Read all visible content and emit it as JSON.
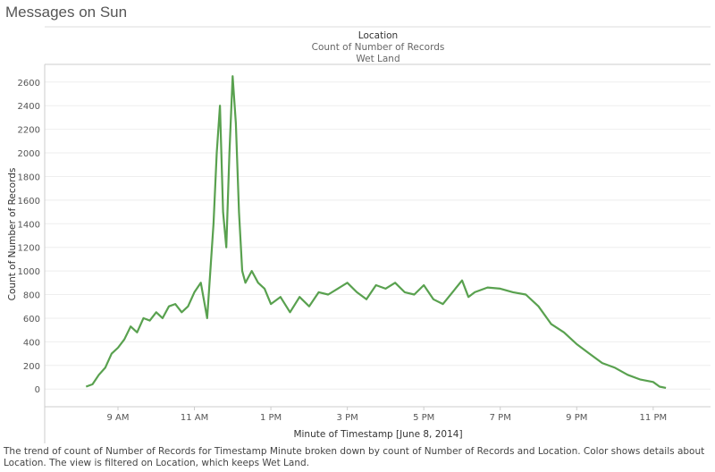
{
  "page": {
    "title": "Messages on Sun",
    "caption": "The trend of count of Number of Records for Timestamp Minute broken down by count of Number of Records and Location.  Color shows details about Location. The view is filtered on Location, which keeps Wet Land."
  },
  "colors": {
    "line": "#59a14f",
    "grid": "#eeeeee",
    "axis": "#cccccc"
  },
  "chart_data": {
    "type": "line",
    "header": {
      "title": "Location",
      "subtitle": "Count of Number of Records",
      "pane_label": "Wet Land"
    },
    "xlabel": "Minute of Timestamp [June 8, 2014]",
    "ylabel": "Count of Number of Records",
    "ylim": [
      -150,
      2750
    ],
    "yticks": [
      0,
      200,
      400,
      600,
      800,
      1000,
      1200,
      1400,
      1600,
      1800,
      2000,
      2200,
      2400,
      2600
    ],
    "ytick_labels": [
      "0",
      "200",
      "400",
      "600",
      "800",
      "1000",
      "1200",
      "1400",
      "1600",
      "1800",
      "2000",
      "2200",
      "2400",
      "2600"
    ],
    "xlim": [
      "07:05",
      "00:30"
    ],
    "xticks": [
      "09:00",
      "11:00",
      "13:00",
      "15:00",
      "17:00",
      "19:00",
      "21:00",
      "23:00"
    ],
    "xtick_labels": [
      "9 AM",
      "11 AM",
      "1 PM",
      "3 PM",
      "5 PM",
      "7 PM",
      "9 PM",
      "11 PM"
    ],
    "grid": true,
    "series": [
      {
        "x": [
          "08:10",
          "08:20",
          "08:30",
          "08:40",
          "08:50",
          "09:00",
          "09:10",
          "09:20",
          "09:30",
          "09:40",
          "09:50",
          "10:00",
          "10:10",
          "10:20",
          "10:30",
          "10:40",
          "10:50",
          "11:00",
          "11:10",
          "11:20",
          "11:30",
          "11:35",
          "11:40",
          "11:45",
          "11:50",
          "11:55",
          "12:00",
          "12:05",
          "12:10",
          "12:15",
          "12:20",
          "12:30",
          "12:40",
          "12:50",
          "13:00",
          "13:15",
          "13:30",
          "13:45",
          "14:00",
          "14:15",
          "14:30",
          "14:45",
          "15:00",
          "15:15",
          "15:30",
          "15:45",
          "16:00",
          "16:15",
          "16:30",
          "16:45",
          "17:00",
          "17:15",
          "17:30",
          "17:45",
          "18:00",
          "18:10",
          "18:20",
          "18:40",
          "19:00",
          "19:20",
          "19:40",
          "20:00",
          "20:20",
          "20:40",
          "21:00",
          "21:20",
          "21:40",
          "22:00",
          "22:20",
          "22:40",
          "23:00",
          "23:10",
          "23:20"
        ],
        "values": [
          20,
          40,
          120,
          180,
          300,
          350,
          420,
          530,
          480,
          600,
          580,
          650,
          600,
          700,
          720,
          650,
          700,
          820,
          900,
          600,
          1400,
          2000,
          2400,
          1500,
          1200,
          2000,
          2650,
          2250,
          1500,
          1000,
          900,
          1000,
          900,
          850,
          720,
          780,
          650,
          780,
          700,
          820,
          800,
          850,
          900,
          820,
          760,
          880,
          850,
          900,
          820,
          800,
          880,
          760,
          720,
          820,
          920,
          780,
          820,
          860,
          850,
          820,
          800,
          700,
          550,
          480,
          380,
          300,
          220,
          180,
          120,
          80,
          60,
          20,
          10
        ]
      }
    ]
  }
}
